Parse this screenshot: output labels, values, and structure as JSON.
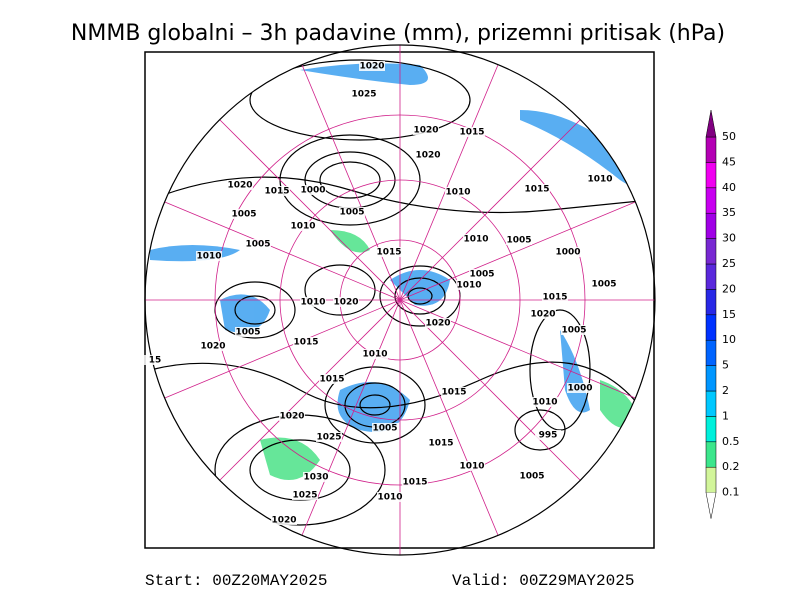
{
  "title": "NMMB globalni – 3h padavine (mm), prizemni pritisak (hPa)",
  "colorbar": {
    "levels": [
      0.1,
      0.2,
      0.5,
      1,
      2,
      5,
      10,
      15,
      20,
      25,
      30,
      35,
      40,
      45,
      50
    ],
    "colors": [
      "#d2f59a",
      "#3ce68c",
      "#00f0dc",
      "#00c8ff",
      "#0096ff",
      "#0064ff",
      "#0032ff",
      "#2828e6",
      "#5a28dc",
      "#7828d2",
      "#a000e6",
      "#c800f0",
      "#f000f0",
      "#b400b4"
    ],
    "over_color": "#800080"
  },
  "isobar_labels": [
    1020,
    1025,
    1020,
    1015,
    1020,
    1020,
    1015,
    1000,
    1010,
    1015,
    1010,
    1005,
    1005,
    1010,
    1010,
    1005,
    1000,
    1005,
    1010,
    1015,
    1005,
    1010,
    1015,
    1005,
    1010,
    1020,
    1020,
    1020,
    1005,
    1005,
    1015,
    1020,
    1010,
    15,
    1015,
    1015,
    1000,
    1010,
    1020,
    1005,
    1025,
    995,
    1015,
    1010,
    1030,
    1015,
    1005,
    1025,
    1010,
    1020
  ],
  "footer": {
    "start": "Start: 00Z20MAY2025",
    "valid": "Valid: 00Z29MAY2025"
  }
}
